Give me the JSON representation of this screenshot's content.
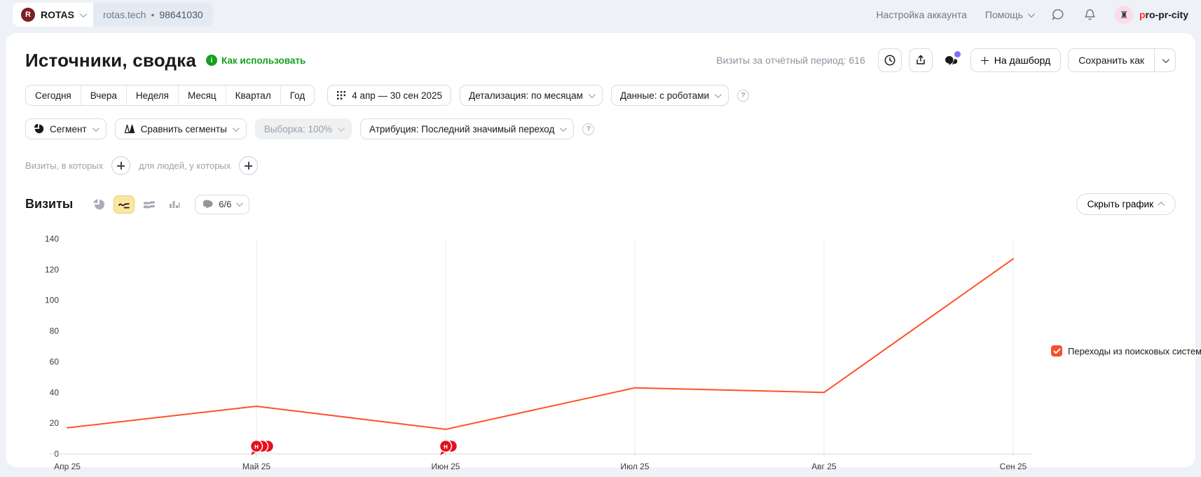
{
  "topbar": {
    "logo_letter": "R",
    "counter_name": "ROTAS",
    "counter_domain": "rotas.tech",
    "counter_separator": "•",
    "counter_id": "98641030",
    "account_settings": "Настройка аккаунта",
    "help": "Помощь",
    "username": "pro-pr-city"
  },
  "header": {
    "title": "Источники, сводка",
    "how_to_use": "Как использовать",
    "visits_summary": "Визиты за отчётный период: 616",
    "to_dashboard": "На дашборд",
    "save_as": "Сохранить как"
  },
  "filters": {
    "periods": [
      "Сегодня",
      "Вчера",
      "Неделя",
      "Месяц",
      "Квартал",
      "Год"
    ],
    "date_range": "4 апр — 30 сен 2025",
    "detalization": "Детализация: по месяцам",
    "data_mode": "Данные: с роботами",
    "segment": "Сегмент",
    "compare_segments": "Сравнить сегменты",
    "sampling": "Выборка: 100%",
    "attribution": "Атрибуция: Последний значимый переход",
    "help_glyph": "?"
  },
  "segment_builder": {
    "visits_label": "Визиты, в которых",
    "people_label": "для людей, у которых"
  },
  "chart_header": {
    "metric": "Визиты",
    "comments_count": "6/6",
    "hide_chart": "Скрыть график"
  },
  "chart_data": {
    "type": "line",
    "title": "Визиты",
    "categories": [
      "Апр 25",
      "Май 25",
      "Июн 25",
      "Июл 25",
      "Авг 25",
      "Сен 25"
    ],
    "series": [
      {
        "name": "Переходы из поисковых систем",
        "color": "#ff5129",
        "values": [
          17,
          31,
          16,
          43,
          40,
          127
        ]
      }
    ],
    "ylim": [
      0,
      140
    ],
    "ytick_step": 20,
    "grid": "vertical-only",
    "legend_position": "right",
    "annotations": [
      {
        "category_index": 1,
        "label": "н",
        "count": 3
      },
      {
        "category_index": 2,
        "label": "н",
        "count": 2
      }
    ]
  },
  "colors": {
    "accent_line": "#ff5129",
    "legend_checkbox": "#f4502c",
    "annotation_red": "#e60f1f",
    "selected_icon_bg": "#fbe7a0",
    "green_link": "#14a11e",
    "purple_badge": "#8a6cf2",
    "topbar_bg": "#eef1f6",
    "logo_bg": "#7d1f22"
  },
  "icons": {
    "logo": "counter-logo",
    "chevrons": "dropdown arrows",
    "clock": "report schedule",
    "export": "share/export",
    "comments": "comments with purple dot",
    "chat": "feedback bubble",
    "bell": "notifications",
    "calendar_grid": "date range grid",
    "pie": "pie chart type",
    "line": "line chart type (selected)",
    "area": "stacked areas chart type",
    "columns": "columns chart type",
    "bubble": "comment bubble"
  }
}
